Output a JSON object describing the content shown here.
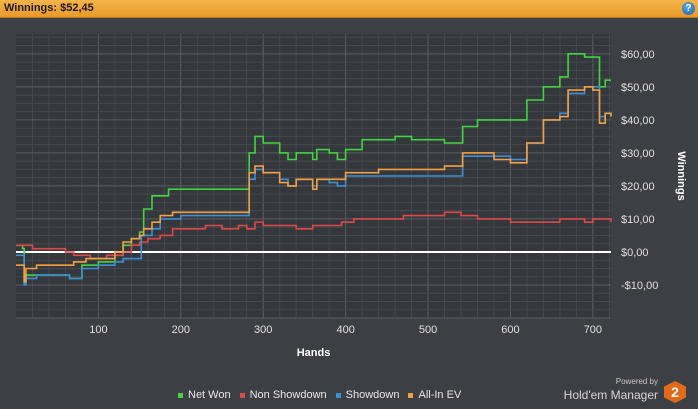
{
  "header": {
    "title": "Winnings: $52,45",
    "help_icon": "?"
  },
  "brand": {
    "powered": "Powered by",
    "name": "Hold'em Manager",
    "logo": "2"
  },
  "chart_data": {
    "type": "line",
    "xlabel": "Hands",
    "ylabel": "Winnings",
    "xlim": [
      0,
      722
    ],
    "ylim": [
      -20,
      66
    ],
    "xticks": [
      100,
      200,
      300,
      400,
      500,
      600,
      700
    ],
    "yticks": [
      -10,
      0,
      10,
      20,
      30,
      40,
      50,
      60
    ],
    "ytick_labels": [
      "-$10,00",
      "$0,00",
      "$10,00",
      "$20,00",
      "$30,00",
      "$40,00",
      "$50,00",
      "$60,00"
    ],
    "grid": true,
    "legend_position": "bottom",
    "series": [
      {
        "name": "Net Won",
        "color": "#3fd63f",
        "points": [
          [
            0,
            2
          ],
          [
            8,
            1
          ],
          [
            10,
            -9
          ],
          [
            12,
            -7
          ],
          [
            25,
            -7
          ],
          [
            60,
            -7
          ],
          [
            65,
            -8
          ],
          [
            80,
            -4
          ],
          [
            100,
            -3
          ],
          [
            120,
            -1
          ],
          [
            130,
            2
          ],
          [
            140,
            4
          ],
          [
            150,
            6
          ],
          [
            155,
            13
          ],
          [
            165,
            17
          ],
          [
            185,
            19
          ],
          [
            220,
            19
          ],
          [
            240,
            19
          ],
          [
            280,
            19
          ],
          [
            283,
            30
          ],
          [
            290,
            35
          ],
          [
            300,
            33
          ],
          [
            320,
            30
          ],
          [
            330,
            28
          ],
          [
            340,
            30
          ],
          [
            360,
            28
          ],
          [
            365,
            31
          ],
          [
            380,
            30
          ],
          [
            390,
            28
          ],
          [
            400,
            31
          ],
          [
            420,
            34
          ],
          [
            440,
            34
          ],
          [
            460,
            35
          ],
          [
            480,
            34
          ],
          [
            500,
            34
          ],
          [
            520,
            33
          ],
          [
            538,
            33
          ],
          [
            542,
            38
          ],
          [
            560,
            40
          ],
          [
            600,
            40
          ],
          [
            615,
            40
          ],
          [
            620,
            46
          ],
          [
            640,
            50
          ],
          [
            660,
            53
          ],
          [
            670,
            60
          ],
          [
            690,
            59
          ],
          [
            705,
            59
          ],
          [
            708,
            50
          ],
          [
            715,
            52
          ],
          [
            722,
            52
          ]
        ]
      },
      {
        "name": "Non Showdown",
        "color": "#e04848",
        "points": [
          [
            0,
            2
          ],
          [
            20,
            1
          ],
          [
            40,
            1
          ],
          [
            60,
            0
          ],
          [
            70,
            -1
          ],
          [
            90,
            -2
          ],
          [
            110,
            -1
          ],
          [
            130,
            0
          ],
          [
            140,
            2
          ],
          [
            150,
            3
          ],
          [
            160,
            4
          ],
          [
            175,
            5
          ],
          [
            190,
            7
          ],
          [
            210,
            7
          ],
          [
            230,
            8
          ],
          [
            250,
            7
          ],
          [
            270,
            8
          ],
          [
            280,
            7
          ],
          [
            290,
            9
          ],
          [
            300,
            8
          ],
          [
            320,
            8
          ],
          [
            340,
            7
          ],
          [
            360,
            8
          ],
          [
            380,
            8
          ],
          [
            395,
            9
          ],
          [
            410,
            10
          ],
          [
            440,
            10
          ],
          [
            470,
            11
          ],
          [
            490,
            11
          ],
          [
            500,
            11
          ],
          [
            520,
            12
          ],
          [
            540,
            11
          ],
          [
            560,
            10
          ],
          [
            580,
            10
          ],
          [
            600,
            9
          ],
          [
            620,
            9
          ],
          [
            640,
            9
          ],
          [
            660,
            10
          ],
          [
            690,
            9
          ],
          [
            700,
            10
          ],
          [
            722,
            9
          ]
        ]
      },
      {
        "name": "Showdown",
        "color": "#3a8fd8",
        "points": [
          [
            0,
            -1
          ],
          [
            8,
            -1
          ],
          [
            10,
            -10
          ],
          [
            12,
            -8
          ],
          [
            25,
            -7
          ],
          [
            60,
            -7
          ],
          [
            65,
            -8
          ],
          [
            80,
            -5
          ],
          [
            100,
            -4
          ],
          [
            120,
            -3
          ],
          [
            130,
            -2
          ],
          [
            148,
            -2
          ],
          [
            152,
            5
          ],
          [
            165,
            7
          ],
          [
            175,
            10
          ],
          [
            200,
            11
          ],
          [
            240,
            11
          ],
          [
            280,
            11
          ],
          [
            283,
            22
          ],
          [
            290,
            25
          ],
          [
            300,
            24
          ],
          [
            320,
            22
          ],
          [
            330,
            20
          ],
          [
            340,
            22
          ],
          [
            360,
            20
          ],
          [
            365,
            22
          ],
          [
            380,
            21
          ],
          [
            390,
            20
          ],
          [
            400,
            23
          ],
          [
            420,
            23
          ],
          [
            440,
            23
          ],
          [
            460,
            23
          ],
          [
            480,
            23
          ],
          [
            500,
            23
          ],
          [
            520,
            23
          ],
          [
            538,
            23
          ],
          [
            542,
            29
          ],
          [
            560,
            29
          ],
          [
            600,
            28
          ],
          [
            615,
            28
          ],
          [
            620,
            33
          ],
          [
            640,
            40
          ],
          [
            660,
            42
          ],
          [
            670,
            48
          ],
          [
            690,
            50
          ],
          [
            705,
            50
          ],
          [
            708,
            41
          ],
          [
            715,
            42
          ],
          [
            722,
            41
          ]
        ]
      },
      {
        "name": "All-In EV",
        "color": "#f5a040",
        "points": [
          [
            0,
            -4
          ],
          [
            8,
            -4
          ],
          [
            10,
            -9
          ],
          [
            12,
            -5
          ],
          [
            25,
            -4
          ],
          [
            50,
            -4
          ],
          [
            60,
            -4
          ],
          [
            70,
            -3
          ],
          [
            85,
            -2
          ],
          [
            100,
            -2
          ],
          [
            120,
            0
          ],
          [
            130,
            3
          ],
          [
            140,
            4
          ],
          [
            150,
            5
          ],
          [
            155,
            7
          ],
          [
            165,
            9
          ],
          [
            175,
            11
          ],
          [
            190,
            12
          ],
          [
            220,
            12
          ],
          [
            240,
            12
          ],
          [
            280,
            12
          ],
          [
            283,
            24
          ],
          [
            290,
            26
          ],
          [
            300,
            24
          ],
          [
            320,
            21
          ],
          [
            330,
            20
          ],
          [
            340,
            22
          ],
          [
            360,
            19
          ],
          [
            365,
            22
          ],
          [
            380,
            22
          ],
          [
            390,
            22
          ],
          [
            400,
            24
          ],
          [
            420,
            24
          ],
          [
            440,
            25
          ],
          [
            460,
            25
          ],
          [
            480,
            25
          ],
          [
            500,
            25
          ],
          [
            520,
            26
          ],
          [
            538,
            26
          ],
          [
            542,
            30
          ],
          [
            560,
            30
          ],
          [
            580,
            28
          ],
          [
            600,
            27
          ],
          [
            615,
            27
          ],
          [
            620,
            33
          ],
          [
            640,
            40
          ],
          [
            660,
            41
          ],
          [
            670,
            49
          ],
          [
            690,
            50
          ],
          [
            700,
            49
          ],
          [
            705,
            49
          ],
          [
            708,
            39
          ],
          [
            715,
            42
          ],
          [
            722,
            41
          ]
        ]
      }
    ]
  }
}
